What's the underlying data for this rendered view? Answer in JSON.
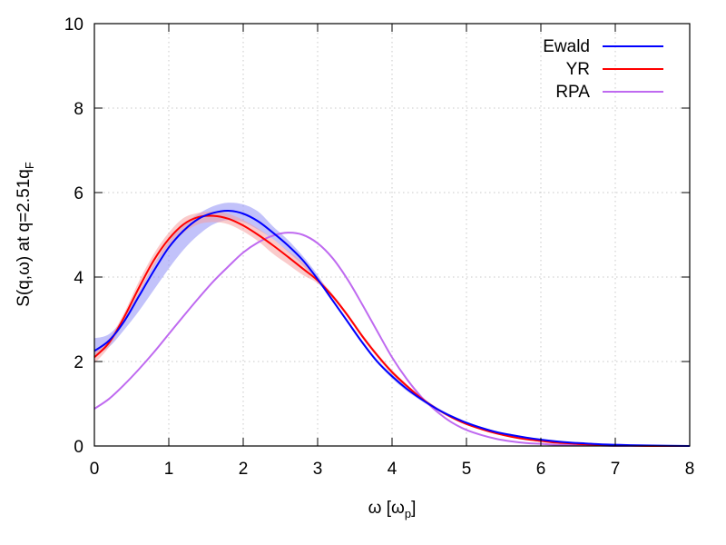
{
  "chart_data": {
    "type": "line",
    "xlabel": {
      "main": "ω [ω",
      "sub": "p",
      "close": "]"
    },
    "ylabel": {
      "main": "S(q,ω) at q=2.51q",
      "sub": "F"
    },
    "xlim": [
      0,
      8
    ],
    "ylim": [
      0,
      10
    ],
    "xticks": [
      "0",
      "1",
      "2",
      "3",
      "4",
      "5",
      "6",
      "7",
      "8"
    ],
    "yticks": [
      "0",
      "2",
      "4",
      "6",
      "8",
      "10"
    ],
    "grid": true,
    "legend_position": "top-right",
    "series": [
      {
        "name": "Ewald",
        "color": "#0000ff",
        "band_color": "#8f8ff5",
        "x": [
          0.0,
          0.2,
          0.4,
          0.6,
          0.8,
          1.0,
          1.2,
          1.4,
          1.6,
          1.8,
          2.0,
          2.2,
          2.4,
          2.6,
          2.8,
          3.0,
          3.2,
          3.4,
          3.6,
          3.8,
          4.0,
          4.2,
          4.4,
          4.6,
          4.8,
          5.0,
          5.2,
          5.4,
          5.6,
          5.8,
          6.0,
          6.2,
          6.4,
          6.6,
          6.8,
          7.0,
          7.2,
          7.5,
          8.0
        ],
        "y": [
          2.25,
          2.5,
          2.95,
          3.55,
          4.15,
          4.7,
          5.1,
          5.38,
          5.52,
          5.57,
          5.5,
          5.32,
          5.05,
          4.75,
          4.4,
          3.95,
          3.45,
          2.95,
          2.45,
          2.0,
          1.65,
          1.35,
          1.1,
          0.88,
          0.7,
          0.55,
          0.43,
          0.33,
          0.26,
          0.2,
          0.15,
          0.11,
          0.08,
          0.06,
          0.04,
          0.03,
          0.02,
          0.01,
          0.0
        ],
        "y_low": [
          2.15,
          2.35,
          2.75,
          3.2,
          3.7,
          4.2,
          4.65,
          5.0,
          5.25,
          5.35,
          5.3,
          5.12,
          4.9,
          4.6,
          4.28,
          3.9,
          3.42,
          2.92,
          2.42,
          1.97,
          1.6,
          1.3,
          1.06,
          0.85,
          0.68,
          0.53,
          0.42,
          0.32,
          0.25,
          0.19,
          0.14,
          0.1,
          0.07,
          0.05,
          0.03,
          0.02,
          0.01,
          0.0,
          0.0
        ],
        "y_high": [
          2.55,
          2.65,
          3.05,
          3.65,
          4.3,
          4.85,
          5.25,
          5.5,
          5.68,
          5.76,
          5.72,
          5.55,
          5.2,
          4.88,
          4.5,
          4.05,
          3.5,
          3.0,
          2.5,
          2.05,
          1.7,
          1.4,
          1.15,
          0.92,
          0.73,
          0.58,
          0.45,
          0.35,
          0.27,
          0.21,
          0.16,
          0.12,
          0.09,
          0.07,
          0.05,
          0.04,
          0.03,
          0.02,
          0.01
        ]
      },
      {
        "name": "YR",
        "color": "#ff0000",
        "band_color": "#f5a0a0",
        "x": [
          0.0,
          0.2,
          0.4,
          0.6,
          0.8,
          1.0,
          1.2,
          1.4,
          1.6,
          1.8,
          2.0,
          2.2,
          2.4,
          2.6,
          2.8,
          3.0,
          3.2,
          3.4,
          3.6,
          3.8,
          4.0,
          4.2,
          4.4,
          4.6,
          4.8,
          5.0,
          5.2,
          5.4,
          5.6,
          5.8,
          6.0,
          6.2,
          6.4,
          6.6,
          6.8,
          7.0,
          7.2,
          7.5,
          8.0
        ],
        "y": [
          2.1,
          2.45,
          3.05,
          3.75,
          4.4,
          4.9,
          5.25,
          5.42,
          5.45,
          5.38,
          5.22,
          5.0,
          4.75,
          4.48,
          4.2,
          3.92,
          3.55,
          3.1,
          2.6,
          2.15,
          1.75,
          1.42,
          1.12,
          0.88,
          0.68,
          0.52,
          0.4,
          0.3,
          0.22,
          0.16,
          0.12,
          0.08,
          0.06,
          0.04,
          0.03,
          0.02,
          0.01,
          0.0,
          0.0
        ],
        "y_low": [
          1.95,
          2.35,
          2.95,
          3.6,
          4.25,
          4.72,
          5.05,
          5.25,
          5.3,
          5.25,
          5.08,
          4.85,
          4.55,
          4.3,
          4.05,
          3.85,
          3.5,
          3.05,
          2.55,
          2.1,
          1.7,
          1.38,
          1.08,
          0.85,
          0.65,
          0.5,
          0.38,
          0.28,
          0.2,
          0.15,
          0.11,
          0.07,
          0.05,
          0.03,
          0.02,
          0.01,
          0.0,
          0.0,
          0.0
        ],
        "y_high": [
          2.25,
          2.55,
          3.15,
          3.9,
          4.55,
          5.05,
          5.4,
          5.52,
          5.55,
          5.5,
          5.35,
          5.15,
          4.9,
          4.62,
          4.35,
          4.0,
          3.6,
          3.15,
          2.65,
          2.2,
          1.8,
          1.46,
          1.16,
          0.91,
          0.71,
          0.55,
          0.42,
          0.32,
          0.24,
          0.18,
          0.13,
          0.09,
          0.07,
          0.05,
          0.04,
          0.03,
          0.02,
          0.01,
          0.01
        ]
      },
      {
        "name": "RPA",
        "color": "#bf6af0",
        "x": [
          0.0,
          0.2,
          0.4,
          0.6,
          0.8,
          1.0,
          1.2,
          1.4,
          1.6,
          1.8,
          2.0,
          2.2,
          2.4,
          2.6,
          2.8,
          3.0,
          3.2,
          3.4,
          3.6,
          3.8,
          4.0,
          4.2,
          4.4,
          4.6,
          4.8,
          5.0,
          5.2,
          5.4,
          5.6,
          5.8,
          6.0,
          6.2,
          6.4,
          6.6,
          6.8,
          7.0,
          7.2,
          7.5,
          8.0
        ],
        "y": [
          0.88,
          1.12,
          1.45,
          1.82,
          2.22,
          2.65,
          3.08,
          3.5,
          3.9,
          4.25,
          4.58,
          4.82,
          4.98,
          5.05,
          5.0,
          4.8,
          4.45,
          3.95,
          3.35,
          2.72,
          2.1,
          1.58,
          1.15,
          0.82,
          0.56,
          0.38,
          0.26,
          0.17,
          0.11,
          0.07,
          0.05,
          0.03,
          0.02,
          0.01,
          0.01,
          0.0,
          0.0,
          0.0,
          0.0
        ]
      }
    ]
  }
}
